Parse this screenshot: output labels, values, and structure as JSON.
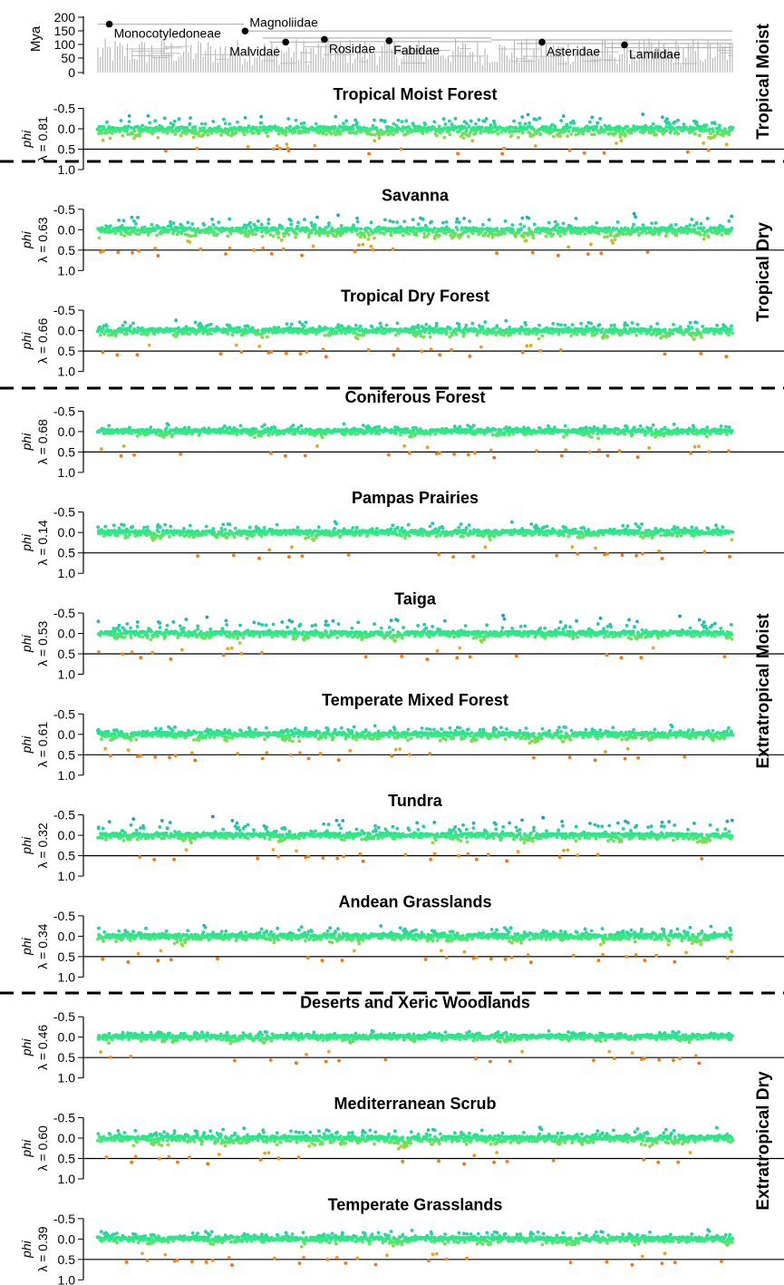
{
  "tree": {
    "ylabel": "Mya",
    "ticks": [
      "200",
      "150",
      "100",
      "50",
      "0"
    ],
    "clades": [
      {
        "name": "Monocotyledoneae",
        "pos": 0.018,
        "age": 175
      },
      {
        "name": "Magnoliidae",
        "pos": 0.232,
        "age": 150
      },
      {
        "name": "Malvidae",
        "pos": 0.296,
        "age": 110
      },
      {
        "name": "Rosidae",
        "pos": 0.357,
        "age": 120
      },
      {
        "name": "Fabidae",
        "pos": 0.459,
        "age": 115
      },
      {
        "name": "Asteridae",
        "pos": 0.7,
        "age": 110
      },
      {
        "name": "Lamiidae",
        "pos": 0.83,
        "age": 100
      }
    ]
  },
  "chart_data": {
    "type": "scatter",
    "y_label": "phi",
    "y_ticks": [
      "-0.5",
      "0.0",
      "0.5",
      "1.0"
    ],
    "ylim": [
      -0.6,
      1.0
    ],
    "reference_line": 0.5,
    "color_scale": [
      "#1f6fd6",
      "#22c3a8",
      "#2bea8a",
      "#9ad63c",
      "#f0a020",
      "#f06a10",
      "#e02010"
    ],
    "panels": [
      {
        "title": "Tropical Moist Forest",
        "lambda": "λ = 0.81",
        "spread": 0.18,
        "neg_tail": 0.45
      },
      {
        "title": "Savanna",
        "lambda": "λ = 0.63",
        "spread": 0.17,
        "neg_tail": 0.48
      },
      {
        "title": "Tropical Dry Forest",
        "lambda": "λ = 0.66",
        "spread": 0.13,
        "neg_tail": 0.3
      },
      {
        "title": "Coniferous Forest",
        "lambda": "λ = 0.68",
        "spread": 0.11,
        "neg_tail": 0.2
      },
      {
        "title": "Pampas Prairies",
        "lambda": "λ = 0.14",
        "spread": 0.12,
        "neg_tail": 0.3
      },
      {
        "title": "Taiga",
        "lambda": "λ = 0.53",
        "spread": 0.12,
        "neg_tail": 0.55
      },
      {
        "title": "Temperate Mixed Forest",
        "lambda": "λ = 0.61",
        "spread": 0.13,
        "neg_tail": 0.25
      },
      {
        "title": "Tundra",
        "lambda": "λ = 0.32",
        "spread": 0.12,
        "neg_tail": 0.6
      },
      {
        "title": "Andean Grasslands",
        "lambda": "λ = 0.34",
        "spread": 0.13,
        "neg_tail": 0.3
      },
      {
        "title": "Deserts and Xeric Woodlands",
        "lambda": "λ = 0.46",
        "spread": 0.1,
        "neg_tail": 0.15
      },
      {
        "title": "Mediterranean Scrub",
        "lambda": "λ = 0.60",
        "spread": 0.14,
        "neg_tail": 0.3
      },
      {
        "title": "Temperate Grasslands",
        "lambda": "λ = 0.39",
        "spread": 0.11,
        "neg_tail": 0.25
      }
    ]
  },
  "groups": [
    {
      "label": "Tropical Moist"
    },
    {
      "label": "Tropical Dry"
    },
    {
      "label": "Extratropical Moist"
    },
    {
      "label": "Extratropical Dry"
    }
  ]
}
